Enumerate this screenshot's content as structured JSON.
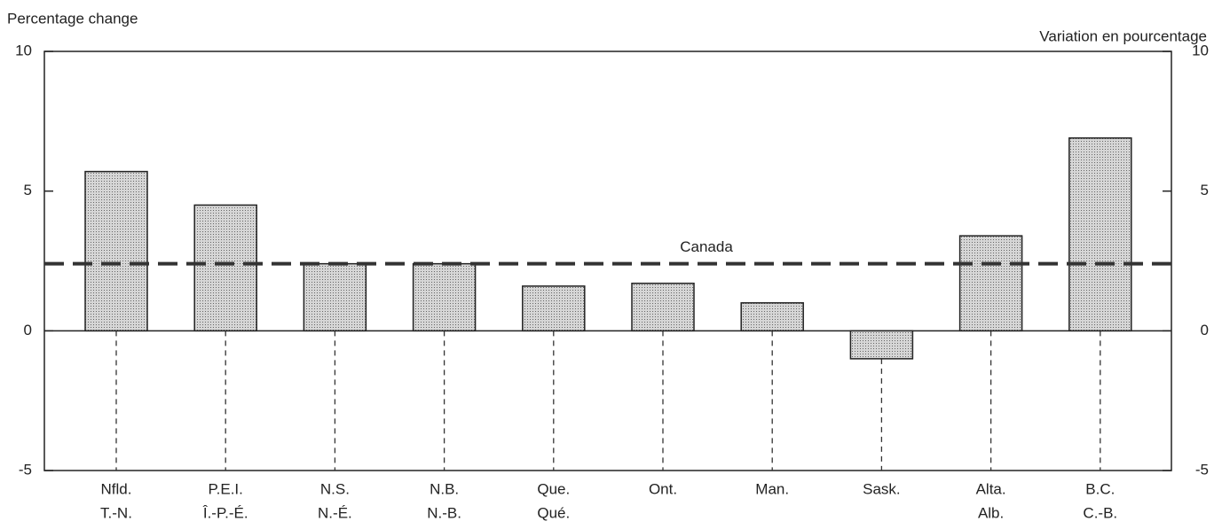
{
  "chart_data": {
    "type": "bar",
    "ylabel": "Percentage change",
    "y2label": "Variation en pourcentage",
    "categories": [
      "Nfld.",
      "P.E.I.",
      "N.S.",
      "N.B.",
      "Que.",
      "Ont.",
      "Man.",
      "Sask.",
      "Alta.",
      "B.C."
    ],
    "categories_fr": [
      "T.-N.",
      "Î.-P.-É.",
      "N.-É.",
      "N.-B.",
      "Qué.",
      null,
      null,
      null,
      "Alb.",
      "C.-B."
    ],
    "values": [
      5.7,
      4.5,
      2.4,
      2.4,
      1.6,
      1.7,
      1.0,
      -1.0,
      3.4,
      6.9
    ],
    "color": "#c4c4c4",
    "reference": {
      "label": "Canada",
      "value": 2.4
    },
    "ylim": [
      -5,
      10
    ],
    "yticks": [
      -5,
      0,
      5,
      10
    ],
    "y2lim": [
      -5,
      10
    ],
    "y2ticks": [
      -5,
      0,
      5,
      10
    ],
    "grid": false
  }
}
